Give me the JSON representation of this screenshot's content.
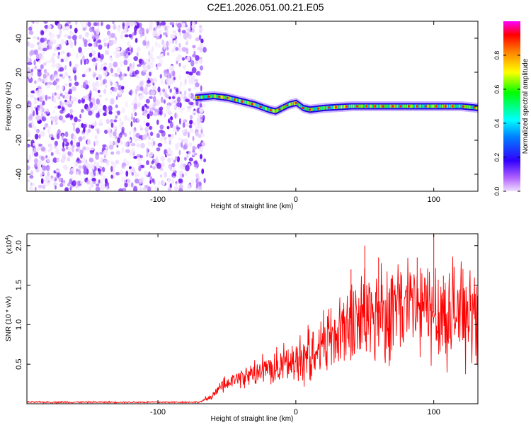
{
  "title": "C2E1.2026.051.00.21.E05",
  "chart_data": [
    {
      "type": "heatmap",
      "xlabel": "Height of straight line (km)",
      "ylabel": "Frequency (Hz)",
      "xlim": [
        -195,
        132
      ],
      "ylim": [
        -50,
        50
      ],
      "x_ticks": [
        -100,
        0,
        100
      ],
      "y_ticks": [
        -40,
        -20,
        0,
        20,
        40
      ],
      "colorbar": {
        "label": "Normalized spectral amplitude",
        "range": [
          0,
          1
        ],
        "ticks": [
          0.0,
          0.2,
          0.4,
          0.6,
          0.8
        ],
        "tick_labels": [
          "0.0",
          "0.2",
          "0.4",
          "0.6",
          "0.8"
        ],
        "colormap": [
          "#ffffff",
          "#8000ff",
          "#0000ff",
          "#00ffff",
          "#00ff00",
          "#ffff00",
          "#ff8000",
          "#ff0000",
          "#ff00ff"
        ]
      },
      "noise_region_x": [
        -195,
        -66
      ],
      "ridge_x": [
        -73,
        -60,
        -50,
        -40,
        -30,
        -20,
        -15,
        -10,
        -5,
        0,
        5,
        10,
        20,
        40,
        60,
        80,
        100,
        120,
        132
      ],
      "ridge_frequency": [
        5,
        6,
        5,
        3,
        1,
        -2,
        -3,
        -1,
        1,
        2,
        -1,
        -2,
        -1,
        0,
        0,
        0,
        0,
        0,
        -1
      ],
      "grid": false
    },
    {
      "type": "line",
      "xlabel": "Height of straight line (km)",
      "ylabel": "SNR (10 * v/v)",
      "y_multiplier": "(x10",
      "y_multiplier_exp": "4",
      "xlim": [
        -195,
        132
      ],
      "ylim": [
        0,
        2.15
      ],
      "x_ticks": [
        -100,
        0,
        100
      ],
      "y_ticks": [
        0.5,
        1.0,
        1.5,
        2.0
      ],
      "y_tick_labels": [
        "0.5",
        "1.0",
        "1.5",
        "2.0"
      ],
      "series_color": "#ff0000",
      "x": [
        -195,
        -150,
        -100,
        -70,
        -62,
        -55,
        -45,
        -35,
        -25,
        -15,
        -5,
        0,
        10,
        20,
        30,
        40,
        50,
        60,
        70,
        80,
        90,
        100,
        110,
        120,
        132
      ],
      "values": [
        0.02,
        0.02,
        0.02,
        0.02,
        0.08,
        0.2,
        0.3,
        0.35,
        0.4,
        0.45,
        0.5,
        0.55,
        0.65,
        0.78,
        0.9,
        1.0,
        1.1,
        1.15,
        1.2,
        1.2,
        1.2,
        1.15,
        1.15,
        1.15,
        1.12
      ],
      "spikes": [
        [
          40,
          1.7
        ],
        [
          50,
          2.0
        ],
        [
          60,
          1.85
        ],
        [
          88,
          1.85
        ],
        [
          100,
          2.2
        ],
        [
          107,
          1.62
        ]
      ],
      "grid": false
    }
  ]
}
